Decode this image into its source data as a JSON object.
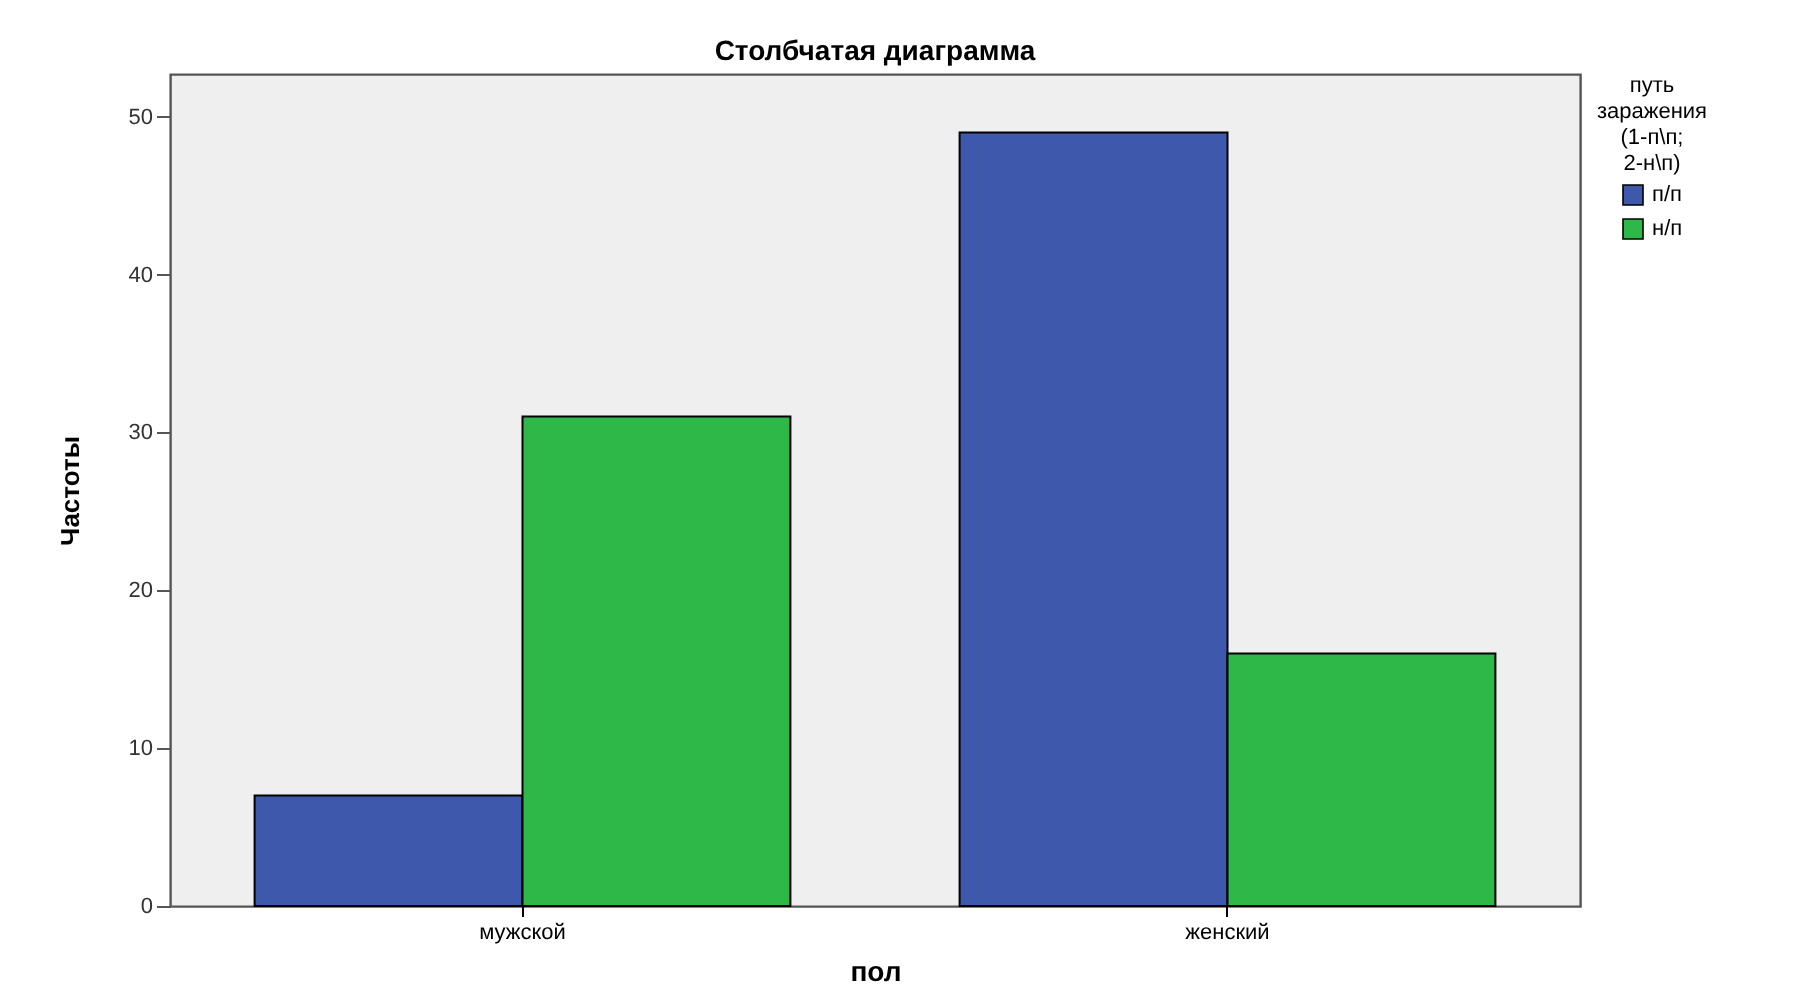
{
  "chart_data": {
    "type": "bar",
    "title": "Столбчатая диаграмма",
    "xlabel": "пол",
    "ylabel": "Частоты",
    "legend_title": "путь заражения (1-п\\п; 2-н\\п)",
    "categories": [
      "мужской",
      "женский"
    ],
    "series": [
      {
        "name": "п/п",
        "color": "#3e58ac",
        "values": [
          7,
          49
        ]
      },
      {
        "name": "н/п",
        "color": "#2eb848",
        "values": [
          31,
          16
        ]
      }
    ],
    "ylim": [
      0,
      52.7
    ],
    "yticks": [
      0,
      10,
      20,
      30,
      40,
      50
    ],
    "grid": false,
    "legend": "top right"
  }
}
